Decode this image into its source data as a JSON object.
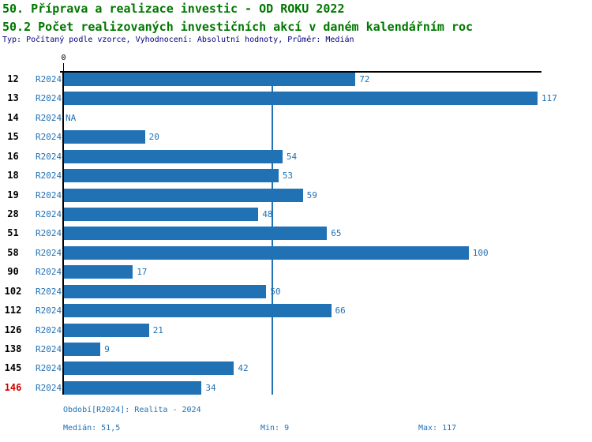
{
  "header": {
    "title": "50. Příprava a realizace investic - OD ROKU 2022",
    "subtitle": "50.2 Počet realizovaných investičních akcí v daném kalendářním roc",
    "meta": "Typ: Počítaný podle vzorce, Vyhodnocení: Absolutní hodnoty, Průměr: Medián"
  },
  "chart_data": {
    "type": "bar",
    "orientation": "horizontal",
    "categories": [
      "12",
      "13",
      "14",
      "15",
      "16",
      "18",
      "19",
      "28",
      "51",
      "58",
      "90",
      "102",
      "112",
      "126",
      "138",
      "145",
      "146"
    ],
    "series_label": "R2024",
    "values": [
      72,
      117,
      null,
      20,
      54,
      53,
      59,
      48,
      65,
      100,
      17,
      50,
      66,
      21,
      9,
      42,
      34
    ],
    "na_label": "NA",
    "zero_label": "0",
    "xlim": [
      0,
      117
    ],
    "median_line_value": 51.5,
    "highlighted_category": "146",
    "grid": false,
    "colors": {
      "bar": "#2171b5",
      "median_line": "#2171b5",
      "value_label": "#2171b5",
      "period_label": "#2171b5",
      "category_label": "#000000",
      "highlighted_category_label": "#d40000",
      "axis": "#000000",
      "title": "#007700",
      "meta": "#000080"
    }
  },
  "footer": {
    "period": "Období[R2024]: Realita - 2024",
    "median": "Medián: 51,5",
    "min": "Min: 9",
    "max": "Max: 117"
  }
}
